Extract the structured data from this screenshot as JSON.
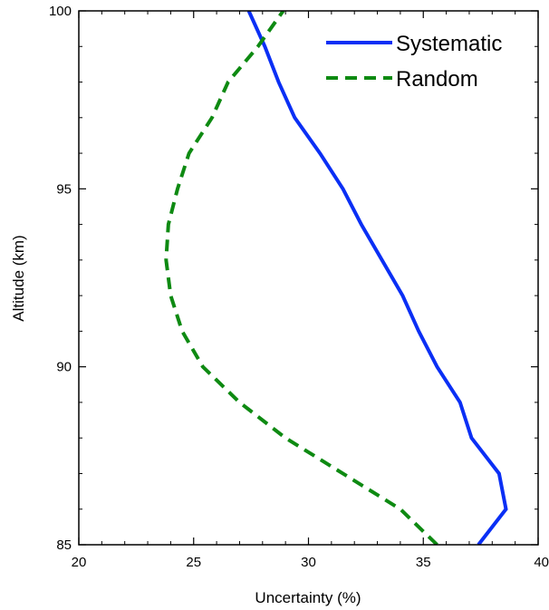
{
  "chart_data": {
    "type": "line",
    "title": "",
    "xlabel": "Uncertainty (%)",
    "ylabel": "Altitude (km)",
    "xlim": [
      20,
      40
    ],
    "ylim": [
      85,
      100
    ],
    "xticks": [
      20,
      25,
      30,
      35,
      40
    ],
    "yticks": [
      85,
      90,
      95,
      100
    ],
    "x_minor_step": 1,
    "y_minor_step": 1,
    "grid": false,
    "legend_position": "top-right",
    "series": [
      {
        "name": "Systematic",
        "color": "#0a2ff5",
        "line_style": "solid",
        "points": [
          {
            "x": 37.4,
            "y": 85
          },
          {
            "x": 38.6,
            "y": 86
          },
          {
            "x": 38.3,
            "y": 87
          },
          {
            "x": 37.1,
            "y": 88
          },
          {
            "x": 36.6,
            "y": 89
          },
          {
            "x": 35.6,
            "y": 90
          },
          {
            "x": 34.8,
            "y": 91
          },
          {
            "x": 34.1,
            "y": 92
          },
          {
            "x": 33.2,
            "y": 93
          },
          {
            "x": 32.3,
            "y": 94
          },
          {
            "x": 31.5,
            "y": 95
          },
          {
            "x": 30.5,
            "y": 96
          },
          {
            "x": 29.4,
            "y": 97
          },
          {
            "x": 28.7,
            "y": 98
          },
          {
            "x": 28.1,
            "y": 99
          },
          {
            "x": 27.4,
            "y": 100
          }
        ]
      },
      {
        "name": "Random",
        "color": "#0e8a12",
        "line_style": "dashed",
        "points": [
          {
            "x": 35.6,
            "y": 85
          },
          {
            "x": 34.0,
            "y": 86
          },
          {
            "x": 31.5,
            "y": 87
          },
          {
            "x": 29.0,
            "y": 88
          },
          {
            "x": 27.0,
            "y": 89
          },
          {
            "x": 25.4,
            "y": 90
          },
          {
            "x": 24.5,
            "y": 91
          },
          {
            "x": 24.0,
            "y": 92
          },
          {
            "x": 23.8,
            "y": 93
          },
          {
            "x": 23.9,
            "y": 94
          },
          {
            "x": 24.3,
            "y": 95
          },
          {
            "x": 24.8,
            "y": 96
          },
          {
            "x": 25.8,
            "y": 97
          },
          {
            "x": 26.5,
            "y": 98
          },
          {
            "x": 27.8,
            "y": 99
          },
          {
            "x": 28.9,
            "y": 100
          }
        ]
      }
    ]
  }
}
